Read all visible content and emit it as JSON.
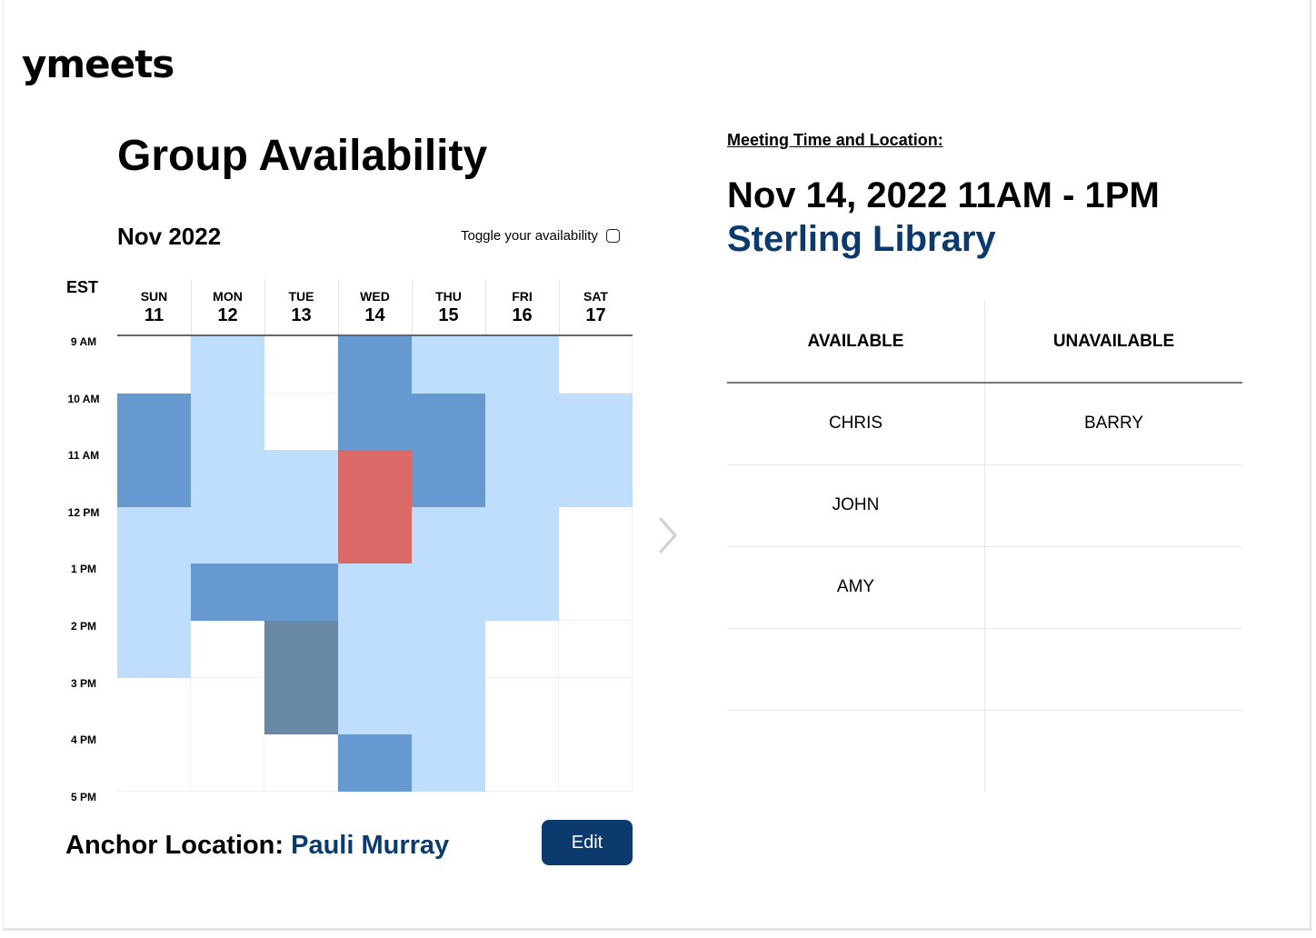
{
  "app": {
    "logo": "ymeets"
  },
  "availability": {
    "title": "Group Availability",
    "month": "Nov 2022",
    "toggle_label": "Toggle your availability",
    "timezone": "EST",
    "days": [
      {
        "name": "SUN",
        "date": "11"
      },
      {
        "name": "MON",
        "date": "12"
      },
      {
        "name": "TUE",
        "date": "13"
      },
      {
        "name": "WED",
        "date": "14"
      },
      {
        "name": "THU",
        "date": "15"
      },
      {
        "name": "FRI",
        "date": "16"
      },
      {
        "name": "SAT",
        "date": "17"
      }
    ],
    "times": [
      "9 AM",
      "10 AM",
      "11 AM",
      "12 PM",
      "1 PM",
      "2 PM",
      "3 PM",
      "4 PM",
      "5 PM"
    ],
    "legend_colors": {
      "0": "#ffffff",
      "1": "#bfdefd",
      "2": "#6699cf",
      "3": "#6888a6",
      "selected": "#d96a68"
    },
    "grid_levels": [
      [
        0,
        1,
        0,
        2,
        1,
        1,
        0
      ],
      [
        2,
        1,
        0,
        2,
        2,
        1,
        1
      ],
      [
        2,
        1,
        1,
        "selected",
        2,
        1,
        1
      ],
      [
        1,
        1,
        1,
        "selected",
        1,
        1,
        0
      ],
      [
        1,
        2,
        2,
        1,
        1,
        1,
        0
      ],
      [
        1,
        0,
        3,
        1,
        1,
        0,
        0
      ],
      [
        0,
        0,
        3,
        1,
        1,
        0,
        0
      ],
      [
        0,
        0,
        0,
        2,
        1,
        0,
        0
      ]
    ],
    "anchor_label": "Anchor Location: ",
    "anchor_value": "Pauli Murray",
    "edit_label": "Edit"
  },
  "meeting": {
    "label": "Meeting Time and Location:",
    "time": "Nov 14, 2022 11AM - 1PM",
    "location": "Sterling Library"
  },
  "attendance": {
    "available_header": "AVAILABLE",
    "unavailable_header": "UNAVAILABLE",
    "available": [
      "CHRIS",
      "JOHN",
      "AMY"
    ],
    "unavailable": [
      "BARRY"
    ]
  }
}
